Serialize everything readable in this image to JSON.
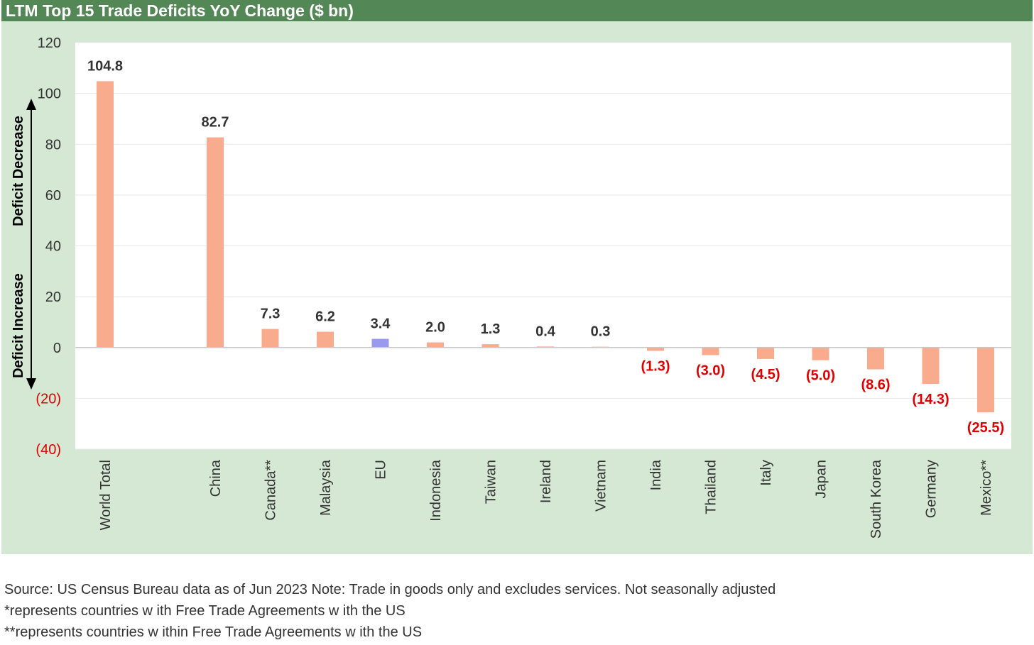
{
  "chart_data": {
    "type": "bar",
    "title": "LTM Top 15 Trade Deficits YoY Change ($ bn)",
    "categories": [
      "World Total",
      "",
      "China",
      "Canada**",
      "Malaysia",
      "EU",
      "Indonesia",
      "Taiwan",
      "Ireland",
      "Vietnam",
      "India",
      "Thailand",
      "Italy",
      "Japan",
      "South Korea",
      "Germany",
      "Mexico**"
    ],
    "values": [
      104.8,
      null,
      82.7,
      7.3,
      6.2,
      3.4,
      2.0,
      1.3,
      0.4,
      0.3,
      -1.3,
      -3.0,
      -4.5,
      -5.0,
      -8.6,
      -14.3,
      -25.5
    ],
    "data_labels": [
      "104.8",
      "",
      "82.7",
      "7.3",
      "6.2",
      "3.4",
      "2.0",
      "1.3",
      "0.4",
      "0.3",
      "(1.3)",
      "(3.0)",
      "(4.5)",
      "(5.0)",
      "(8.6)",
      "(14.3)",
      "(25.5)"
    ],
    "highlight_category": "EU",
    "ylim": [
      -40,
      120
    ],
    "yticks": [
      120,
      100,
      80,
      60,
      40,
      20,
      0,
      -20,
      -40
    ],
    "ytick_labels": [
      "120",
      "100",
      "80",
      "60",
      "40",
      "20",
      "0",
      "(20)",
      "(40)"
    ],
    "xlabel": "",
    "ylabel": "",
    "annotations": {
      "upper": "Deficit Decrease",
      "lower": "Deficit Increase"
    },
    "grid": true,
    "legend": "none",
    "colors": {
      "bar": "#f9ab8e",
      "highlight_bar": "#9999ee",
      "negative_label": "#e00000",
      "positive_label": "#333333",
      "title_bg": "#548756",
      "frame_bg": "#d5e8d4",
      "plot_bg": "#ffffff"
    }
  },
  "notes": [
    "Source: US Census Bureau data as of Jun 2023 Note: Trade in goods only and excludes services. Not seasonally adjusted",
    "*represents countries w ith Free Trade Agreements w ith the US",
    "**represents countries w ithin Free Trade Agreements w ith the US"
  ]
}
